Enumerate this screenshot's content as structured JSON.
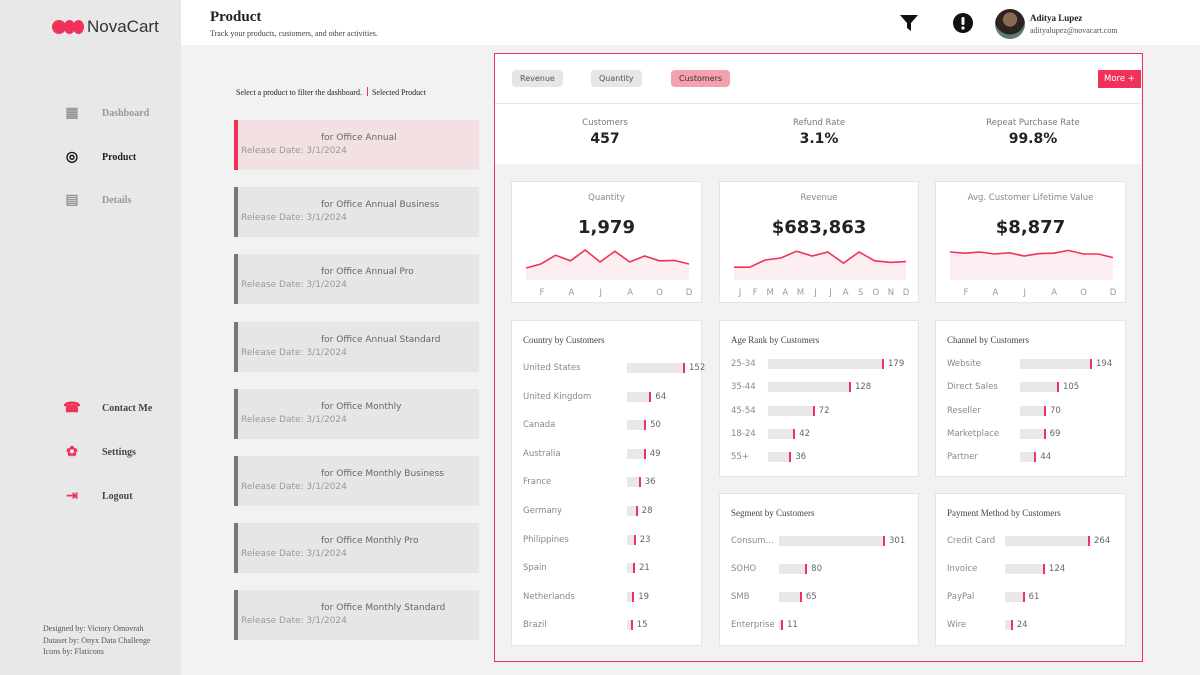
{
  "app": {
    "name": "NovaCart",
    "brand_color": "#f0325a"
  },
  "sidebar": {
    "items": [
      {
        "label": "Dashboard",
        "icon": "dashboard-icon"
      },
      {
        "label": "Product",
        "icon": "target-icon",
        "active": true
      },
      {
        "label": "Details",
        "icon": "clipboard-icon"
      },
      {
        "label": "Contact Me",
        "icon": "contact-icon"
      },
      {
        "label": "Settings",
        "icon": "gear-icon"
      },
      {
        "label": "Logout",
        "icon": "logout-icon"
      }
    ],
    "credits": [
      "Designed by: Victory Omovrah",
      "Dataset by: Onyx Data Challenge",
      "Icons by: Flaticons"
    ]
  },
  "header": {
    "title": "Product",
    "subtitle": "Track your products, customers, and other activities.",
    "user_name": "Aditya Lupez",
    "user_email": "adityalupez@novacart.com"
  },
  "products": {
    "hint": "Select a product to filter the dashboard.",
    "legend": "Selected Product",
    "items": [
      {
        "name": "for Office Annual",
        "date": "Release Date: 3/1/2024",
        "selected": true
      },
      {
        "name": "for Office Annual Business",
        "date": "Release Date: 3/1/2024"
      },
      {
        "name": "for Office Annual Pro",
        "date": "Release Date: 3/1/2024"
      },
      {
        "name": "for Office Annual Standard",
        "date": "Release Date: 3/1/2024"
      },
      {
        "name": "for Office Monthly",
        "date": "Release Date: 3/1/2024"
      },
      {
        "name": "for Office Monthly Business",
        "date": "Release Date: 3/1/2024"
      },
      {
        "name": "for Office Monthly Pro",
        "date": "Release Date: 3/1/2024"
      },
      {
        "name": "for Office Monthly Standard",
        "date": "Release Date: 3/1/2024"
      }
    ]
  },
  "tabs": [
    {
      "label": "Revenue"
    },
    {
      "label": "Quantity"
    },
    {
      "label": "Customers",
      "active": true
    }
  ],
  "more_label": "More +",
  "kpis": [
    {
      "label": "Customers",
      "value": "457"
    },
    {
      "label": "Refund Rate",
      "value": "3.1%"
    },
    {
      "label": "Repeat Purchase Rate",
      "value": "99.8%"
    }
  ],
  "trend_cards": [
    {
      "title": "Quantity",
      "value": "1,979",
      "axis": [
        "F",
        "A",
        "J",
        "A",
        "O",
        "D"
      ],
      "trend": [
        30,
        40,
        62,
        48,
        75,
        45,
        72,
        45,
        60,
        48,
        49,
        40
      ]
    },
    {
      "title": "Revenue",
      "value": "$683,863",
      "axis": [
        "J",
        "F",
        "M",
        "A",
        "M",
        "J",
        "J",
        "A",
        "S",
        "O",
        "N",
        "D"
      ],
      "trend": [
        32,
        32,
        50,
        55,
        72,
        60,
        70,
        42,
        70,
        48,
        44,
        46
      ]
    },
    {
      "title": "Avg. Customer Lifetime Value",
      "value": "$8,877",
      "axis": [
        "F",
        "A",
        "J",
        "A",
        "O",
        "D"
      ],
      "trend": [
        70,
        67,
        70,
        65,
        68,
        60,
        66,
        67,
        74,
        65,
        65,
        56
      ]
    }
  ],
  "bar_cards": [
    {
      "title": "Country by Customers",
      "items": [
        [
          "United States",
          152
        ],
        [
          "United Kingdom",
          64
        ],
        [
          "Canada",
          50
        ],
        [
          "Australia",
          49
        ],
        [
          "France",
          36
        ],
        [
          "Germany",
          28
        ],
        [
          "Philippines",
          23
        ],
        [
          "Spain",
          21
        ],
        [
          "Netherlands",
          19
        ],
        [
          "Brazil",
          15
        ]
      ]
    },
    {
      "title": "Age Rank by Customers",
      "items": [
        [
          "25-34",
          179
        ],
        [
          "35-44",
          128
        ],
        [
          "45-54",
          72
        ],
        [
          "18-24",
          42
        ],
        [
          "55+",
          36
        ]
      ]
    },
    {
      "title": "Channel by Customers",
      "items": [
        [
          "Website",
          194
        ],
        [
          "Direct Sales",
          105
        ],
        [
          "Reseller",
          70
        ],
        [
          "Marketplace",
          69
        ],
        [
          "Partner",
          44
        ]
      ]
    },
    {
      "title": "Segment by Customers",
      "items": [
        [
          "Consum...",
          301
        ],
        [
          "SOHO",
          80
        ],
        [
          "SMB",
          65
        ],
        [
          "Enterprise",
          11
        ]
      ]
    },
    {
      "title": "Payment Method by Customers",
      "items": [
        [
          "Credit Card",
          264
        ],
        [
          "Invoice",
          124
        ],
        [
          "PayPal",
          61
        ],
        [
          "Wire",
          24
        ]
      ]
    }
  ]
}
